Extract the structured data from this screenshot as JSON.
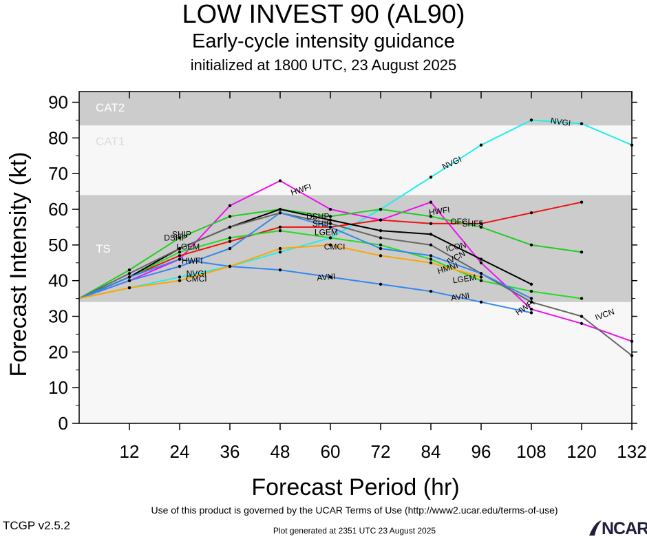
{
  "header": {
    "title": "LOW INVEST 90 (AL90)",
    "subtitle": "Early-cycle intensity guidance",
    "initialized": "initialized at 1800 UTC, 23 August 2025"
  },
  "footer": {
    "terms": "Use of this product is governed by the UCAR Terms of Use (http://www2.ucar.edu/terms-of-use)",
    "version": "TCGP v2.5.2",
    "generated": "Plot generated at 2351 UTC   23 August 2025",
    "logo": "NCAR"
  },
  "colors": {
    "band_dark": "#cccccc",
    "band_light": "#f7f7f7",
    "band_label": "#ffffff",
    "cat1_label": "#dcdcdc"
  },
  "chart_data": {
    "type": "line",
    "xlabel": "Forecast Period (hr)",
    "ylabel": "Forecast Intensity (kt)",
    "xlim": [
      0,
      132
    ],
    "ylim": [
      0,
      93
    ],
    "xticks": [
      12,
      24,
      36,
      48,
      60,
      72,
      84,
      96,
      108,
      120,
      132
    ],
    "yticks": [
      0,
      10,
      20,
      30,
      40,
      50,
      60,
      70,
      80,
      90
    ],
    "bands": [
      {
        "label": "TS",
        "from": 34,
        "to": 64,
        "shade": "dark"
      },
      {
        "label": "CAT1",
        "from": 64,
        "to": 83.5,
        "shade": "light"
      },
      {
        "label": "CAT2",
        "from": 83.5,
        "to": 93,
        "shade": "dark"
      }
    ],
    "series": [
      {
        "name": "NVGI",
        "color": "#22eeee",
        "points": [
          [
            0,
            35
          ],
          [
            12,
            38
          ],
          [
            24,
            41
          ],
          [
            36,
            44
          ],
          [
            48,
            48
          ],
          [
            60,
            52
          ],
          [
            72,
            60
          ],
          [
            84,
            69
          ],
          [
            96,
            78
          ],
          [
            108,
            85
          ],
          [
            120,
            84
          ],
          [
            132,
            78
          ]
        ]
      },
      {
        "name": "HWFI",
        "color": "#ee11ee",
        "points": [
          [
            0,
            35
          ],
          [
            12,
            40
          ],
          [
            24,
            46
          ],
          [
            36,
            61
          ],
          [
            48,
            68
          ],
          [
            60,
            60
          ],
          [
            72,
            57
          ],
          [
            84,
            62
          ],
          [
            96,
            45
          ],
          [
            108,
            32
          ],
          [
            120,
            28
          ],
          [
            132,
            23
          ]
        ]
      },
      {
        "name": "OFCI",
        "color": "#ee1111",
        "points": [
          [
            0,
            35
          ],
          [
            12,
            41
          ],
          [
            24,
            47
          ],
          [
            36,
            51
          ],
          [
            48,
            55
          ],
          [
            60,
            55
          ],
          [
            72,
            57
          ],
          [
            84,
            56
          ],
          [
            96,
            56
          ],
          [
            108,
            59
          ],
          [
            120,
            62
          ]
        ]
      },
      {
        "name": "SHF5",
        "color": "#22cc22",
        "points": [
          [
            0,
            35
          ],
          [
            12,
            43
          ],
          [
            24,
            52
          ],
          [
            36,
            58
          ],
          [
            48,
            60
          ],
          [
            60,
            58
          ],
          [
            72,
            60
          ],
          [
            84,
            58
          ],
          [
            96,
            55
          ],
          [
            108,
            50
          ],
          [
            120,
            48
          ]
        ]
      },
      {
        "name": "LGEM",
        "color": "#22dd22",
        "points": [
          [
            0,
            35
          ],
          [
            12,
            41
          ],
          [
            24,
            48
          ],
          [
            36,
            52
          ],
          [
            48,
            54
          ],
          [
            60,
            52
          ],
          [
            72,
            50
          ],
          [
            84,
            46
          ],
          [
            96,
            40
          ],
          [
            108,
            37
          ],
          [
            120,
            35
          ]
        ]
      },
      {
        "name": "ICON",
        "color": "#000000",
        "points": [
          [
            0,
            35
          ],
          [
            12,
            41
          ],
          [
            24,
            49
          ],
          [
            36,
            55
          ],
          [
            48,
            60
          ],
          [
            60,
            57
          ],
          [
            72,
            54
          ],
          [
            84,
            53
          ],
          [
            96,
            46
          ],
          [
            108,
            39
          ]
        ]
      },
      {
        "name": "IVCN",
        "color": "#666666",
        "points": [
          [
            0,
            35
          ],
          [
            12,
            42
          ],
          [
            24,
            49
          ],
          [
            36,
            55
          ],
          [
            48,
            59
          ],
          [
            60,
            56
          ],
          [
            72,
            52
          ],
          [
            84,
            50
          ],
          [
            96,
            42
          ],
          [
            108,
            34
          ],
          [
            120,
            30
          ],
          [
            132,
            19
          ]
        ]
      },
      {
        "name": "HMNI",
        "color": "#3388ee",
        "points": [
          [
            0,
            35
          ],
          [
            12,
            40
          ],
          [
            24,
            44
          ],
          [
            36,
            49
          ],
          [
            48,
            59
          ],
          [
            60,
            55
          ],
          [
            72,
            49
          ],
          [
            84,
            47
          ],
          [
            96,
            42
          ],
          [
            108,
            35
          ]
        ]
      },
      {
        "name": "AVNI",
        "color": "#3388ee",
        "points": [
          [
            0,
            35
          ],
          [
            12,
            41
          ],
          [
            24,
            46
          ],
          [
            36,
            44
          ],
          [
            48,
            43
          ],
          [
            60,
            41
          ],
          [
            72,
            39
          ],
          [
            84,
            37
          ],
          [
            96,
            34
          ],
          [
            108,
            31
          ]
        ]
      },
      {
        "name": "CMCI",
        "color": "#ffa500",
        "points": [
          [
            0,
            35
          ],
          [
            12,
            38
          ],
          [
            24,
            40
          ],
          [
            36,
            44
          ],
          [
            48,
            49
          ],
          [
            60,
            50
          ],
          [
            72,
            47
          ],
          [
            84,
            45
          ],
          [
            96,
            41
          ]
        ]
      }
    ],
    "labels": [
      {
        "text": "NVGI",
        "x": 115,
        "y": 84.5,
        "rot": 8
      },
      {
        "text": "NVGI",
        "x": 89,
        "y": 73,
        "rot": -25
      },
      {
        "text": "HWFI",
        "x": 53,
        "y": 65.5,
        "rot": -18
      },
      {
        "text": "HWFI",
        "x": 86,
        "y": 59.5,
        "rot": -8
      },
      {
        "text": "HWFI",
        "x": 106.5,
        "y": 32.5,
        "rot": -35
      },
      {
        "text": "OFCI",
        "x": 91,
        "y": 56.5,
        "rot": 0
      },
      {
        "text": "SHF5",
        "x": 94,
        "y": 56,
        "rot": 0
      },
      {
        "text": "ICON",
        "x": 90,
        "y": 49.5,
        "rot": -12
      },
      {
        "text": "IVCN",
        "x": 90,
        "y": 46.5,
        "rot": -28
      },
      {
        "text": "IVCN",
        "x": 125.5,
        "y": 30.5,
        "rot": -20
      },
      {
        "text": "LGEM",
        "x": 92,
        "y": 40.5,
        "rot": -8
      },
      {
        "text": "HMNI",
        "x": 88,
        "y": 43.5,
        "rot": -18
      },
      {
        "text": "AVNI",
        "x": 59,
        "y": 41,
        "rot": -5
      },
      {
        "text": "AVNI",
        "x": 91,
        "y": 35.5,
        "rot": -8
      },
      {
        "text": "CMCI",
        "x": 61,
        "y": 49.5,
        "rot": 0
      },
      {
        "text": "LGEM",
        "x": 59,
        "y": 53.5,
        "rot": 0
      },
      {
        "text": "SHIP",
        "x": 58,
        "y": 56,
        "rot": 0
      },
      {
        "text": "DSHP",
        "x": 57,
        "y": 58,
        "rot": 0
      },
      {
        "text": "DSHP",
        "x": 23,
        "y": 52,
        "rot": 0
      },
      {
        "text": "SHIP",
        "x": 24.5,
        "y": 53,
        "rot": 0
      },
      {
        "text": "LGEM",
        "x": 26,
        "y": 49.5,
        "rot": 0
      },
      {
        "text": "HWFI",
        "x": 27,
        "y": 45.5,
        "rot": 0
      },
      {
        "text": "CMCI",
        "x": 28,
        "y": 40.5,
        "rot": 0
      },
      {
        "text": "NVGI",
        "x": 28,
        "y": 42,
        "rot": 0
      }
    ]
  }
}
